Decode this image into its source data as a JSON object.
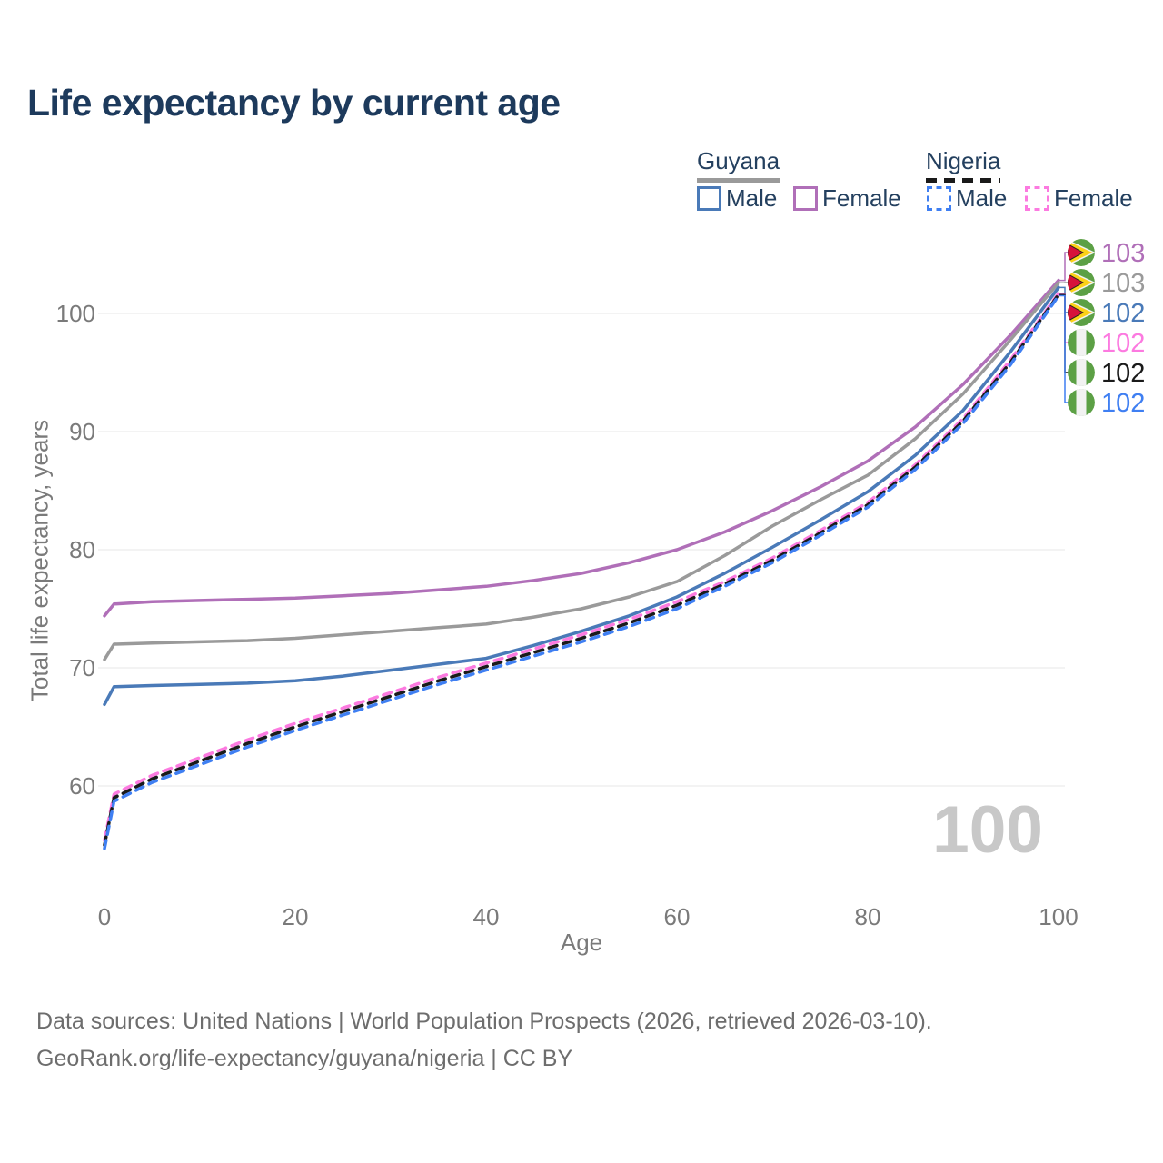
{
  "title": "Life expectancy by current age",
  "watermark": "100",
  "legend": {
    "groups": [
      {
        "label": "Guyana",
        "style": "solid"
      },
      {
        "label": "Nigeria",
        "style": "dashed"
      }
    ],
    "items": [
      {
        "label": "Male",
        "country": "Guyana",
        "color": "#4a7ab8",
        "style": "solid"
      },
      {
        "label": "Female",
        "country": "Guyana",
        "color": "#b06fb8",
        "style": "solid"
      },
      {
        "label": "Male",
        "country": "Nigeria",
        "color": "#3f7ff2",
        "style": "dashed"
      },
      {
        "label": "Female",
        "country": "Nigeria",
        "color": "#fc7ae0",
        "style": "dashed"
      }
    ]
  },
  "chart_data": {
    "type": "line",
    "title": "Life expectancy by current age",
    "xlabel": "Age",
    "ylabel": "Total life expectancy, years",
    "xlim": [
      0,
      100
    ],
    "ylim": [
      53,
      104
    ],
    "xticks": [
      0,
      20,
      40,
      60,
      80,
      100
    ],
    "yticks": [
      60,
      70,
      80,
      90,
      100
    ],
    "grid": "horizontal",
    "x": [
      0,
      1,
      5,
      10,
      15,
      20,
      25,
      30,
      35,
      40,
      45,
      50,
      55,
      60,
      65,
      70,
      75,
      80,
      85,
      90,
      95,
      100
    ],
    "series": [
      {
        "name": "Guyana Female",
        "country": "Guyana",
        "sex": "Female",
        "color": "#b06fb8",
        "dash": false,
        "values": [
          74.4,
          75.4,
          75.6,
          75.7,
          75.8,
          75.9,
          76.1,
          76.3,
          76.6,
          76.9,
          77.4,
          78.0,
          78.9,
          80.0,
          81.5,
          83.3,
          85.3,
          87.5,
          90.4,
          94.0,
          98.2,
          102.8
        ]
      },
      {
        "name": "Guyana",
        "country": "Guyana",
        "sex": "Both",
        "color": "#9a9a9a",
        "dash": false,
        "values": [
          70.7,
          72.0,
          72.1,
          72.2,
          72.3,
          72.5,
          72.8,
          73.1,
          73.4,
          73.7,
          74.3,
          75.0,
          76.0,
          77.3,
          79.5,
          82.0,
          84.2,
          86.3,
          89.4,
          93.2,
          97.8,
          102.6
        ]
      },
      {
        "name": "Guyana Male",
        "country": "Guyana",
        "sex": "Male",
        "color": "#4a7ab8",
        "dash": false,
        "values": [
          66.9,
          68.4,
          68.5,
          68.6,
          68.7,
          68.9,
          69.3,
          69.8,
          70.3,
          70.8,
          71.9,
          73.1,
          74.4,
          76.0,
          78.0,
          80.2,
          82.5,
          84.9,
          88.0,
          91.8,
          96.8,
          102.2
        ]
      },
      {
        "name": "Nigeria Female",
        "country": "Nigeria",
        "sex": "Female",
        "color": "#fc7ae0",
        "dash": true,
        "values": [
          55.4,
          59.3,
          60.9,
          62.4,
          63.9,
          65.3,
          66.6,
          67.9,
          69.2,
          70.4,
          71.6,
          72.8,
          74.1,
          75.6,
          77.3,
          79.3,
          81.6,
          84.0,
          87.2,
          91.1,
          96.1,
          101.7
        ]
      },
      {
        "name": "Nigeria",
        "country": "Nigeria",
        "sex": "Both",
        "color": "#1a1a1a",
        "dash": true,
        "values": [
          55.0,
          59.0,
          60.6,
          62.1,
          63.6,
          65.0,
          66.3,
          67.6,
          68.9,
          70.1,
          71.3,
          72.5,
          73.8,
          75.3,
          77.1,
          79.1,
          81.4,
          83.8,
          87.0,
          90.9,
          95.9,
          101.6
        ]
      },
      {
        "name": "Nigeria Male",
        "country": "Nigeria",
        "sex": "Male",
        "color": "#3f7ff2",
        "dash": true,
        "values": [
          54.7,
          58.7,
          60.3,
          61.8,
          63.3,
          64.7,
          66.0,
          67.3,
          68.6,
          69.8,
          71.0,
          72.2,
          73.5,
          75.0,
          76.9,
          78.9,
          81.2,
          83.6,
          86.8,
          90.7,
          95.7,
          101.5
        ]
      }
    ],
    "end_labels": [
      {
        "value": "103",
        "flag": "guyana",
        "color": "#b06fb8"
      },
      {
        "value": "103",
        "flag": "guyana",
        "color": "#9a9a9a"
      },
      {
        "value": "102",
        "flag": "guyana",
        "color": "#4a7ab8"
      },
      {
        "value": "102",
        "flag": "nigeria",
        "color": "#fc7ae0"
      },
      {
        "value": "102",
        "flag": "nigeria",
        "color": "#1a1a1a"
      },
      {
        "value": "102",
        "flag": "nigeria",
        "color": "#3f7ff2"
      }
    ],
    "legend_position": "top-right"
  },
  "colors": {
    "title_text": "#1d3a5c",
    "axis_text": "#7a7a7a",
    "gridline": "#ececec",
    "watermark": "#c8c8c8",
    "footer_text": "#6d6d6d",
    "flag_green": "#5ca045",
    "flag_red": "#d7113a",
    "flag_yellow": "#fcd117",
    "flag_white": "#f2f2f2"
  },
  "footer": {
    "line1": "Data sources: United Nations | World Population Prospects (2026, retrieved 2026-03-10).",
    "line2": "GeoRank.org/life-expectancy/guyana/nigeria | CC BY"
  }
}
